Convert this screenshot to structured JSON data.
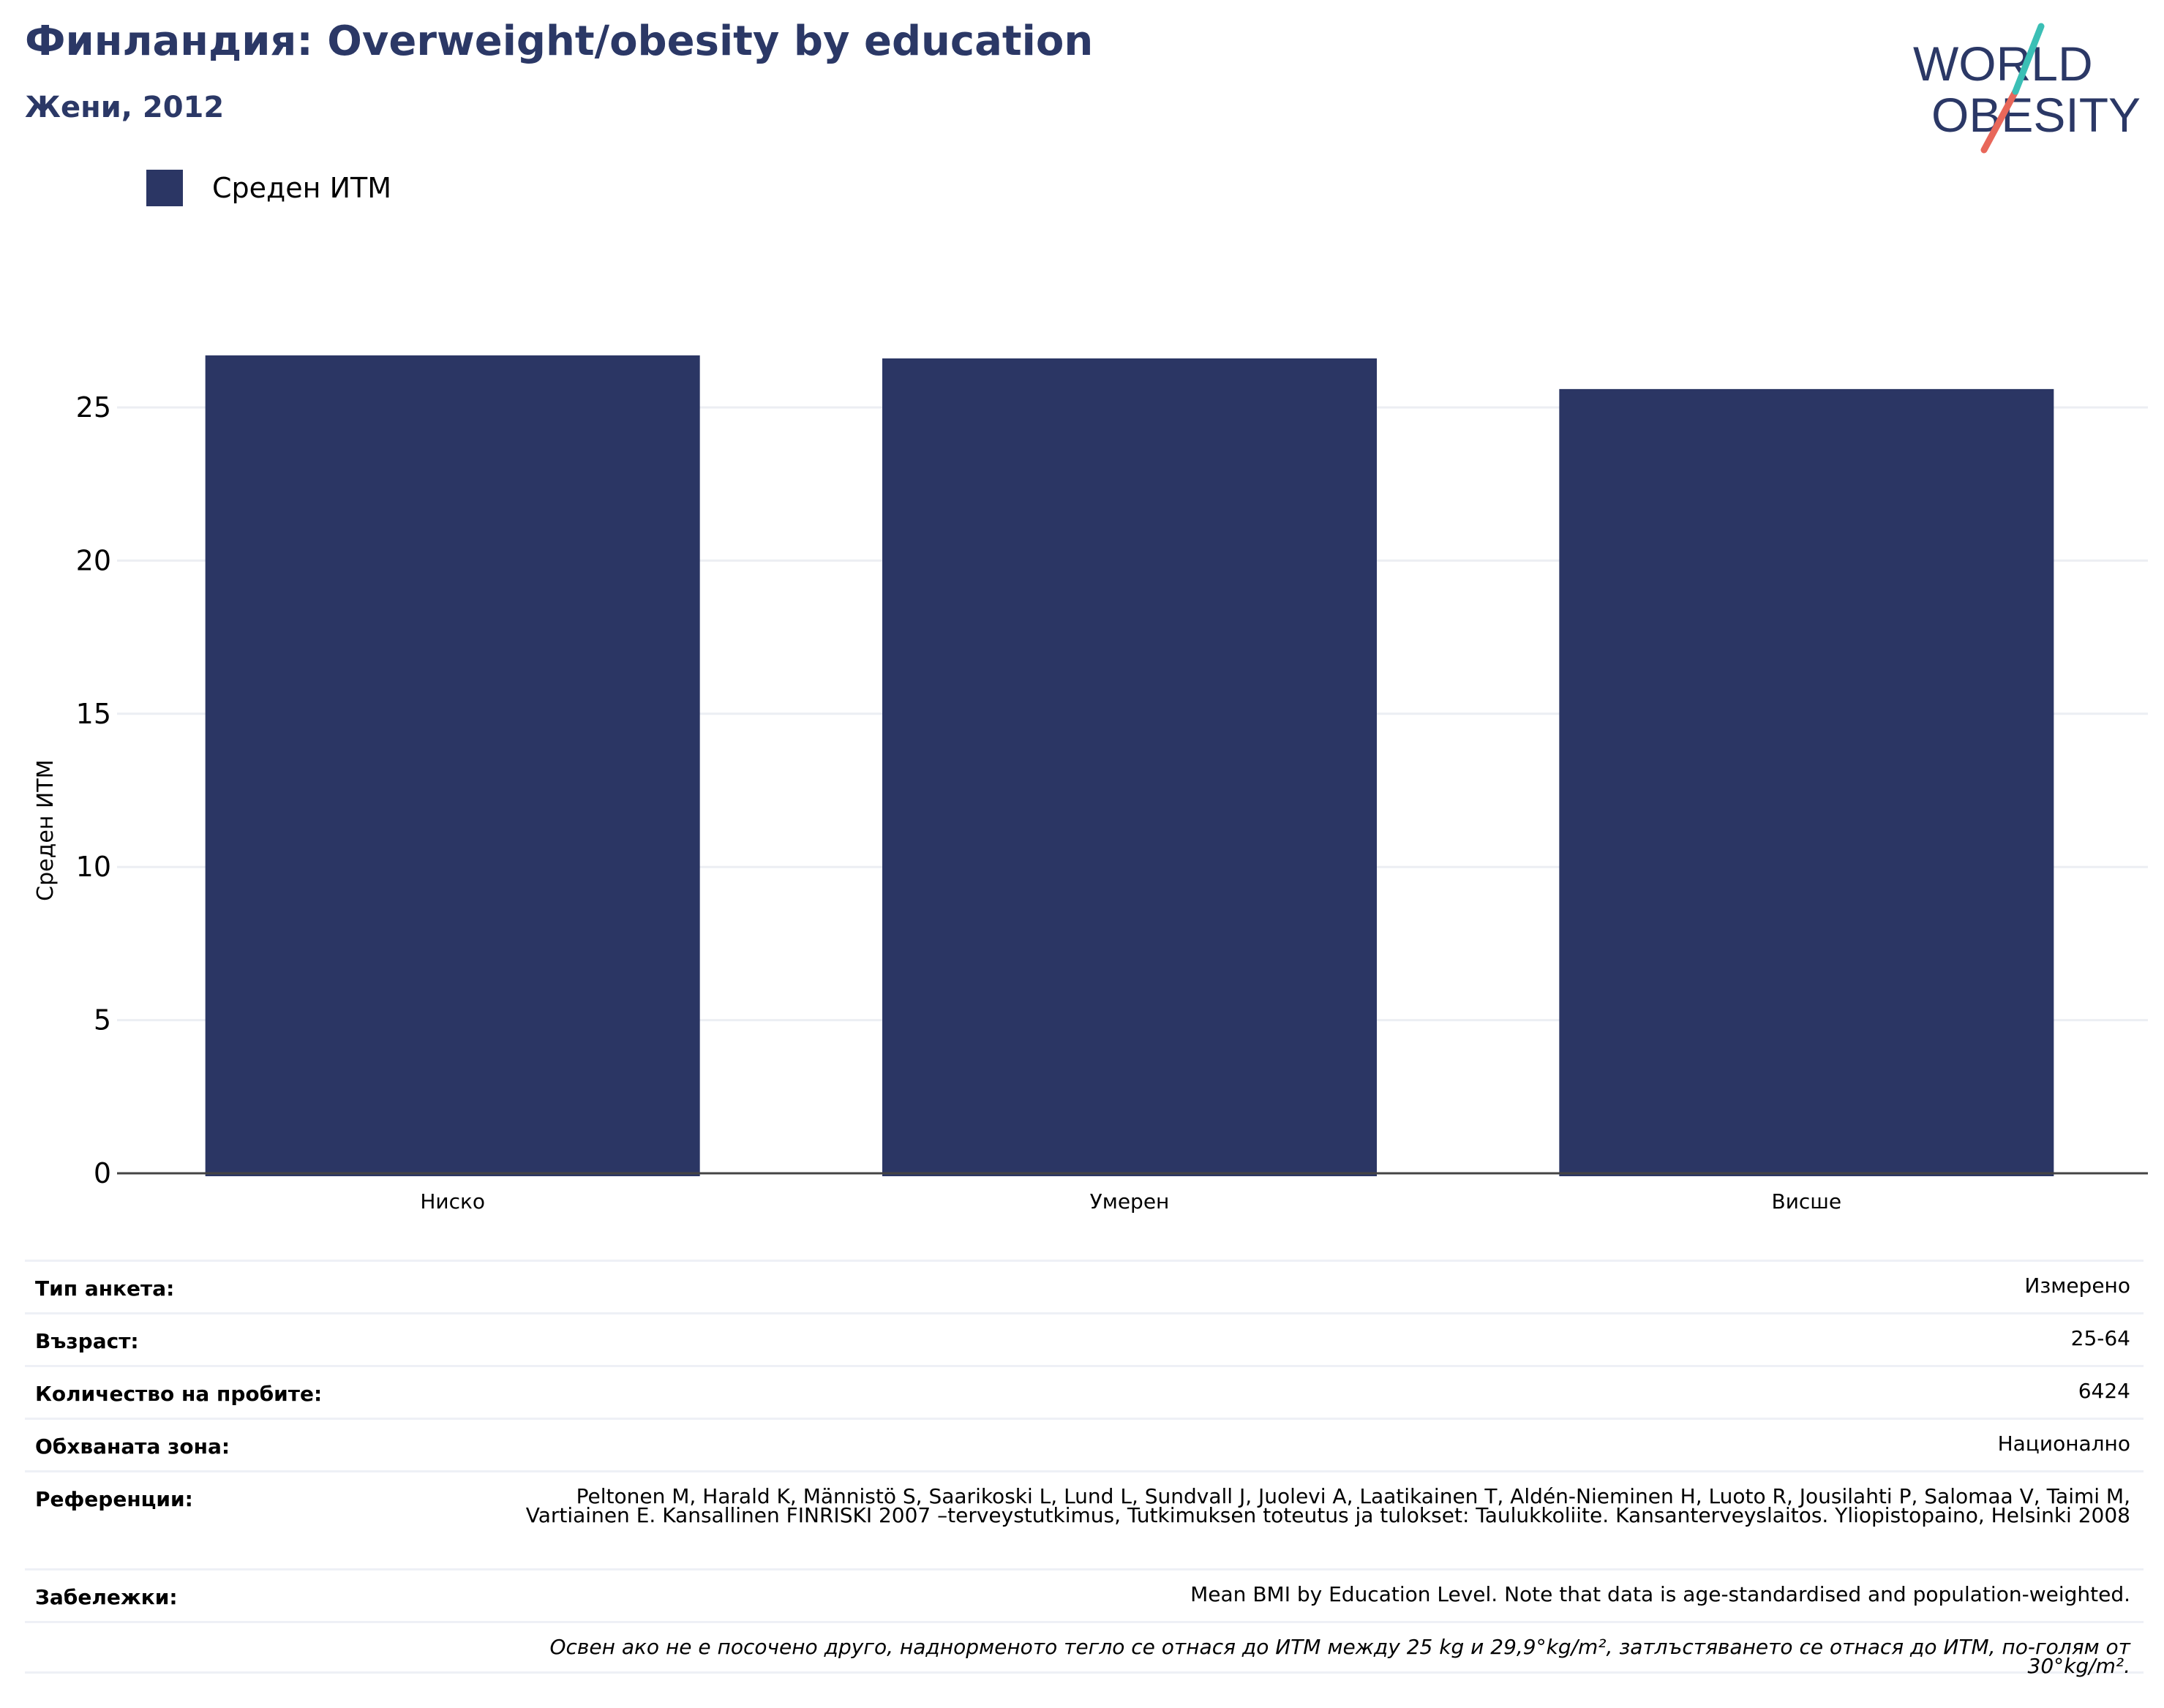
{
  "header": {
    "title": "Финландия: Overweight/obesity by education",
    "subtitle": "Жени, 2012"
  },
  "logo": {
    "line1": "WORLD",
    "line2": "OBESITY"
  },
  "colors": {
    "bar": "#2b3664",
    "title": "#2b3866",
    "grid": "#eceef3",
    "axis": "#444444",
    "logo_teal": "#3bbfb5",
    "logo_red": "#e8675a"
  },
  "chart_data": {
    "type": "bar",
    "categories": [
      "Ниско",
      "Умерен",
      "Висше"
    ],
    "series": [
      {
        "name": "Среден ИТМ",
        "values": [
          26.7,
          26.6,
          25.6
        ]
      }
    ],
    "title": "Финландия: Overweight/obesity by education",
    "subtitle": "Жени, 2012",
    "xlabel": "",
    "ylabel": "Среден ИТМ",
    "ylim": [
      0,
      27
    ],
    "yticks": [
      0,
      5,
      10,
      15,
      20,
      25
    ],
    "grid": true,
    "legend": "top-left"
  },
  "meta": {
    "survey_type": {
      "label": "Тип анкета:",
      "value": "Измерено"
    },
    "age": {
      "label": "Възраст:",
      "value": "25-64"
    },
    "sample_size": {
      "label": "Количество на пробите:",
      "value": "6424"
    },
    "area": {
      "label": "Обхваната зона:",
      "value": "Национално"
    },
    "references": {
      "label": "Референции:",
      "value": "Peltonen M, Harald K, Männistö S, Saarikoski L, Lund L, Sundvall J, Juolevi A, Laatikainen T, Aldén-Nieminen H, Luoto R, Jousilahti P, Salomaa V, Taimi M, Vartiainen E. Kansallinen FINRISKI 2007 –terveystutkimus, Tutkimuksen toteutus ja tulokset: Taulukkoliite. Kansanterveyslaitos. Yliopistopaino, Helsinki 2008"
    },
    "notes": {
      "label": "Забележки:",
      "value": "Mean BMI by Education Level. Note that data is age-standardised and population-weighted."
    },
    "footnote": "Освен ако не е посочено друго, наднорменото тегло се отнася до ИТМ между 25 kg и 29,9°kg/m², затлъстяването се отнася до ИТМ, по-голям от 30°kg/m²."
  }
}
